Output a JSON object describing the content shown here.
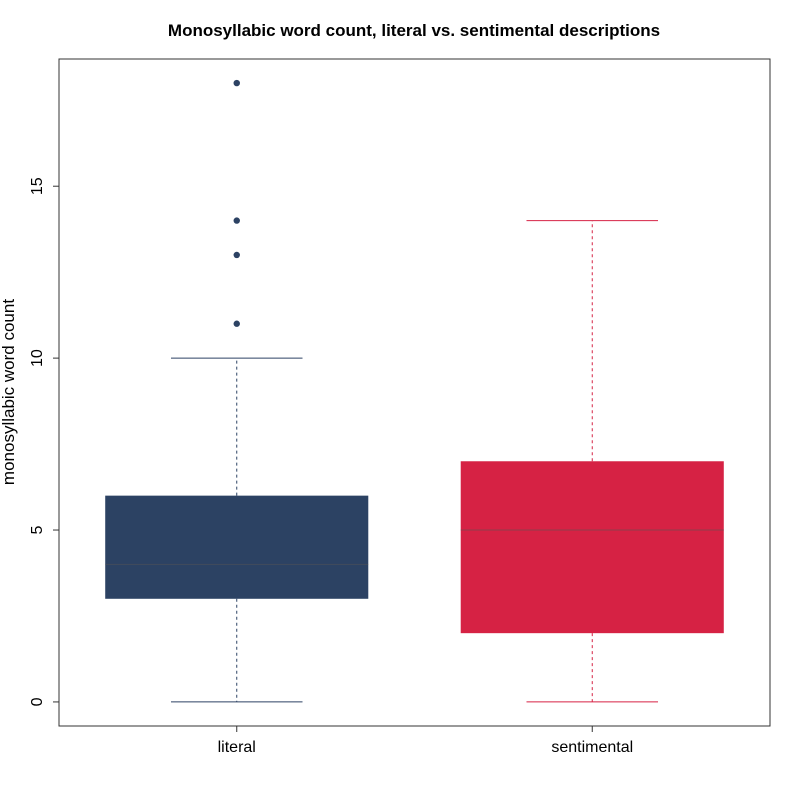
{
  "chart_data": {
    "type": "box",
    "title": "Monosyllabic word count, literal vs. sentimental descriptions",
    "xlabel": "",
    "ylabel": "monosyllabic word count",
    "ylim": [
      -0.7,
      18.7
    ],
    "yticks": [
      0,
      5,
      10,
      15
    ],
    "grid": false,
    "categories": [
      "literal",
      "sentimental"
    ],
    "series": [
      {
        "name": "literal",
        "color": "#2c4263",
        "min": 0,
        "q1": 3,
        "median": 4,
        "q3": 6,
        "max": 10,
        "outliers": [
          11,
          13,
          14,
          18
        ]
      },
      {
        "name": "sentimental",
        "color": "#d62244",
        "min": 0,
        "q1": 2,
        "median": 5,
        "q3": 7,
        "max": 14,
        "outliers": []
      }
    ]
  }
}
